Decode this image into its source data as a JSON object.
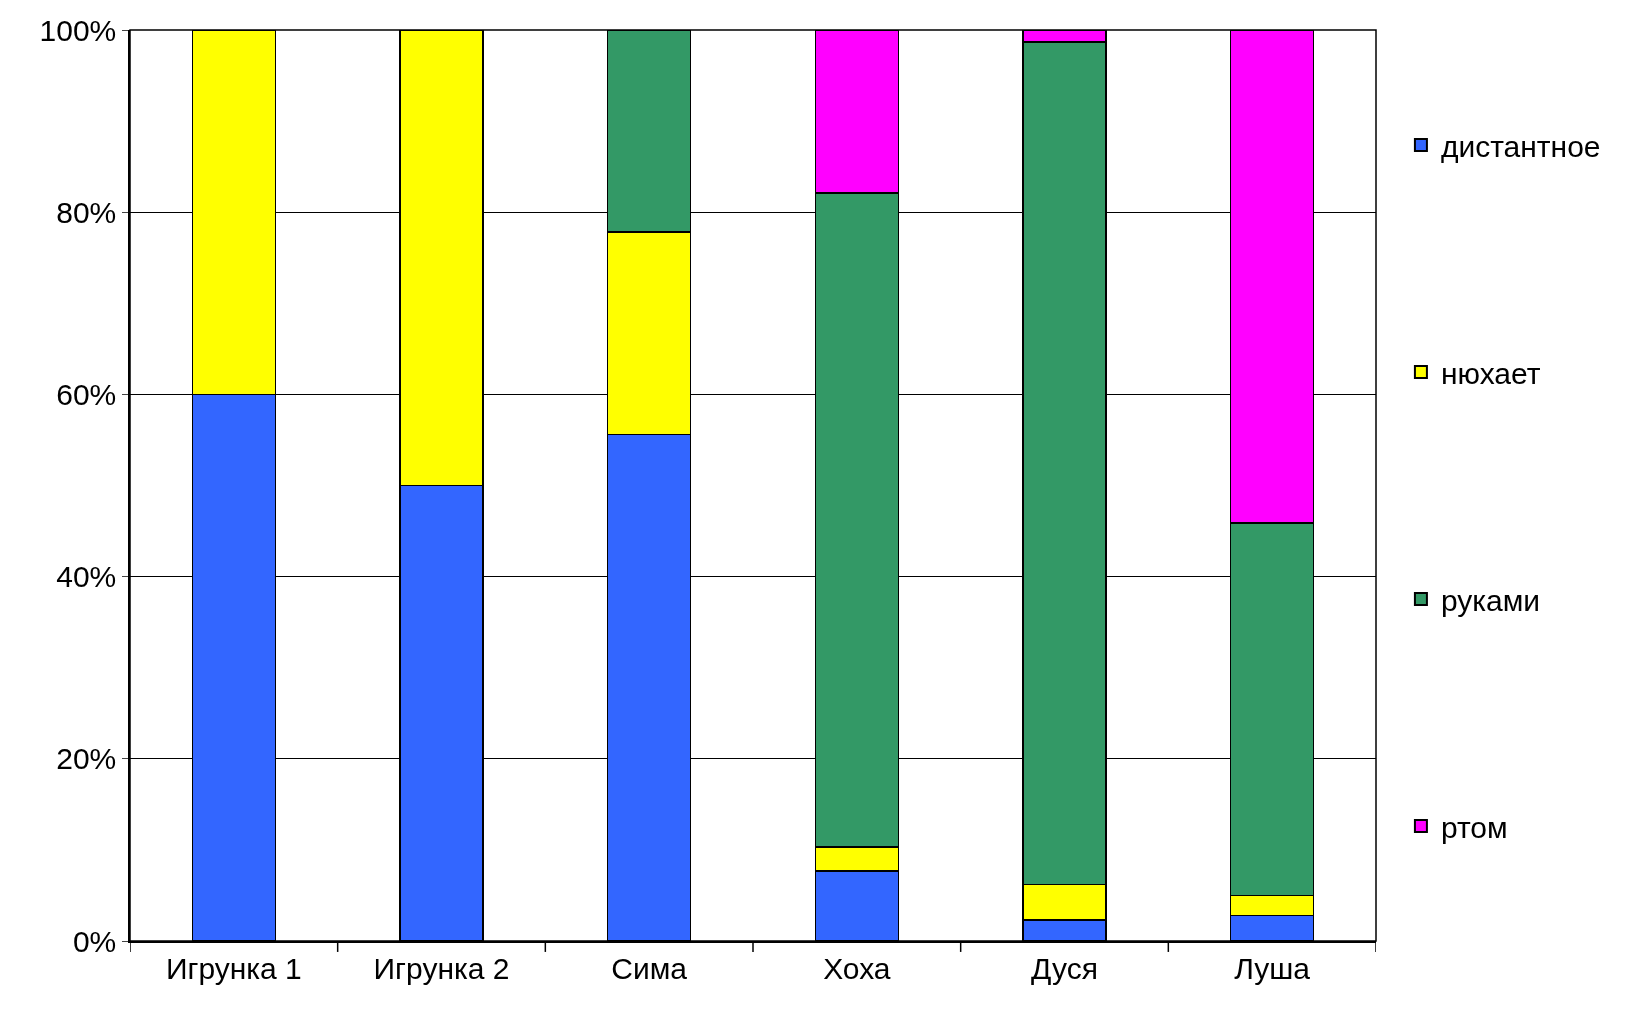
{
  "chart_data": {
    "type": "bar",
    "stacked": true,
    "categories": [
      "Игрунка 1",
      "Игрунка 2",
      "Сима",
      "Хоха",
      "Дуся",
      "Луша"
    ],
    "series": [
      {
        "name": "дистантное",
        "color": "#3366ff",
        "values": [
          60,
          50,
          55.6,
          7.7,
          2.3,
          2.8
        ]
      },
      {
        "name": "нюхает",
        "color": "#ffff00",
        "values": [
          40,
          50,
          22.2,
          2.6,
          3.9,
          2.2
        ]
      },
      {
        "name": "руками",
        "color": "#339966",
        "values": [
          null,
          null,
          22.2,
          71.8,
          92.5,
          40.9
        ]
      },
      {
        "name": "ртом",
        "color": "#ff00ff",
        "values": [
          null,
          null,
          null,
          17.9,
          1.3,
          54.1
        ]
      }
    ],
    "ylim": [
      0,
      100
    ],
    "yticks": [
      {
        "value": 0,
        "label": "0%"
      },
      {
        "value": 20,
        "label": "20%"
      },
      {
        "value": 40,
        "label": "40%"
      },
      {
        "value": 60,
        "label": "60%"
      },
      {
        "value": 80,
        "label": "80%"
      },
      {
        "value": 100,
        "label": "100%"
      }
    ],
    "grid": "y",
    "legend": "right"
  }
}
